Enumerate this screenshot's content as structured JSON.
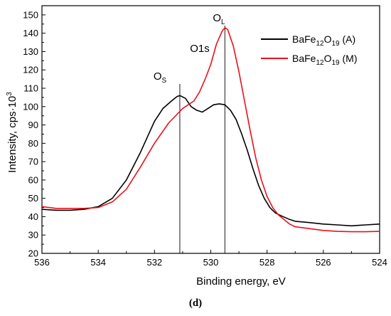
{
  "chart_data": {
    "type": "line",
    "xlabel": "Binding energy, eV",
    "ylabel": "Intensity, cps·10",
    "ylabel_sup": "3",
    "xlim": [
      536,
      524
    ],
    "ylim": [
      20,
      155
    ],
    "x_ticks": [
      536,
      534,
      532,
      530,
      528,
      526,
      524
    ],
    "y_ticks": [
      20,
      30,
      40,
      50,
      60,
      70,
      80,
      90,
      100,
      110,
      120,
      130,
      140,
      150
    ],
    "legend_placement": "top-right",
    "grid": false,
    "series": [
      {
        "name_base": "BaFe",
        "name_sub1": "12",
        "name_mid": "O",
        "name_sub2": "19",
        "name_tail": " (A)",
        "color": "#000000",
        "x": [
          536,
          535.5,
          535,
          534.5,
          534,
          533.5,
          533,
          532.5,
          532,
          531.7,
          531.4,
          531.2,
          531.1,
          530.9,
          530.7,
          530.5,
          530.3,
          530.1,
          529.9,
          529.7,
          529.5,
          529.3,
          529.1,
          528.9,
          528.7,
          528.5,
          528.3,
          528.1,
          527.9,
          527.7,
          527.5,
          527.2,
          527,
          526.5,
          526,
          525.5,
          525,
          524.5,
          524
        ],
        "y": [
          44,
          43.5,
          43.5,
          44,
          45.5,
          50,
          60,
          75,
          92,
          99,
          103,
          105.5,
          106,
          104.5,
          100,
          98,
          97,
          99,
          101,
          101.5,
          101,
          98,
          93,
          85,
          76,
          66,
          57,
          50,
          45,
          42,
          40.5,
          38.5,
          37.5,
          36.8,
          36,
          35.5,
          35,
          35.5,
          36
        ]
      },
      {
        "name_base": "BaFe",
        "name_sub1": "12",
        "name_mid": "O",
        "name_sub2": "19",
        "name_tail": " (M)",
        "color": "#e8111b",
        "x": [
          536,
          535.5,
          535,
          534.5,
          534,
          533.5,
          533,
          532.5,
          532,
          531.5,
          531,
          530.8,
          530.6,
          530.4,
          530.2,
          530,
          529.8,
          529.6,
          529.5,
          529.4,
          529.2,
          529,
          528.8,
          528.6,
          528.4,
          528.2,
          528,
          527.8,
          527.6,
          527.4,
          527.2,
          527,
          526.5,
          526,
          525.5,
          525,
          524.5,
          524
        ],
        "y": [
          45.5,
          44.5,
          44.5,
          44.5,
          45,
          48,
          55,
          67,
          80,
          91,
          99,
          101,
          103,
          108,
          115,
          123,
          134,
          141,
          143,
          142,
          133,
          119,
          103,
          87,
          72,
          60,
          51,
          45,
          41,
          38.5,
          36,
          34.5,
          33.5,
          32.5,
          32,
          31.8,
          31.8,
          32
        ]
      }
    ],
    "annotations": {
      "o1s": "O1s",
      "os_base": "O",
      "os_sub": "S",
      "os_x": 531.1,
      "ol_base": "O",
      "ol_sub": "L",
      "ol_x": 529.5
    }
  },
  "panel_label": "(d)"
}
